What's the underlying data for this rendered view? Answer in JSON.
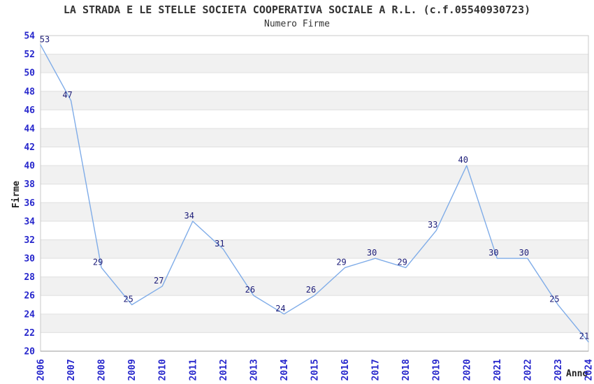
{
  "chart_data": {
    "type": "line",
    "title": "LA STRADA E LE STELLE SOCIETA COOPERATIVA SOCIALE A R.L. (c.f.05540930723)",
    "subtitle": "Numero Firme",
    "xlabel": "Anno",
    "ylabel": "Firme",
    "x": [
      2006,
      2007,
      2008,
      2009,
      2010,
      2011,
      2012,
      2013,
      2014,
      2015,
      2016,
      2017,
      2018,
      2019,
      2020,
      2021,
      2022,
      2023,
      2024
    ],
    "series": [
      {
        "name": "Numero Firme",
        "values": [
          53,
          47,
          29,
          25,
          27,
          34,
          31,
          26,
          24,
          26,
          29,
          30,
          29,
          33,
          40,
          30,
          30,
          25,
          21
        ]
      }
    ],
    "ylim": [
      20,
      54
    ],
    "ytick_step": 2,
    "grid": "banded-horizontal-rows",
    "legend": "none",
    "data_labels": true,
    "x_tick_rotation_deg": 90
  },
  "colors": {
    "line": "#7FACE8",
    "tick_label": "#2626CC",
    "data_label": "#1C1C78",
    "band_gray": "#F1F1F1",
    "band_white": "#FFFFFF",
    "gridline": "#E0E0E0",
    "plot_border": "#C8C8C8",
    "axis_bottom": "#999999",
    "title_text": "#333333",
    "background": "#FFFFFF"
  }
}
